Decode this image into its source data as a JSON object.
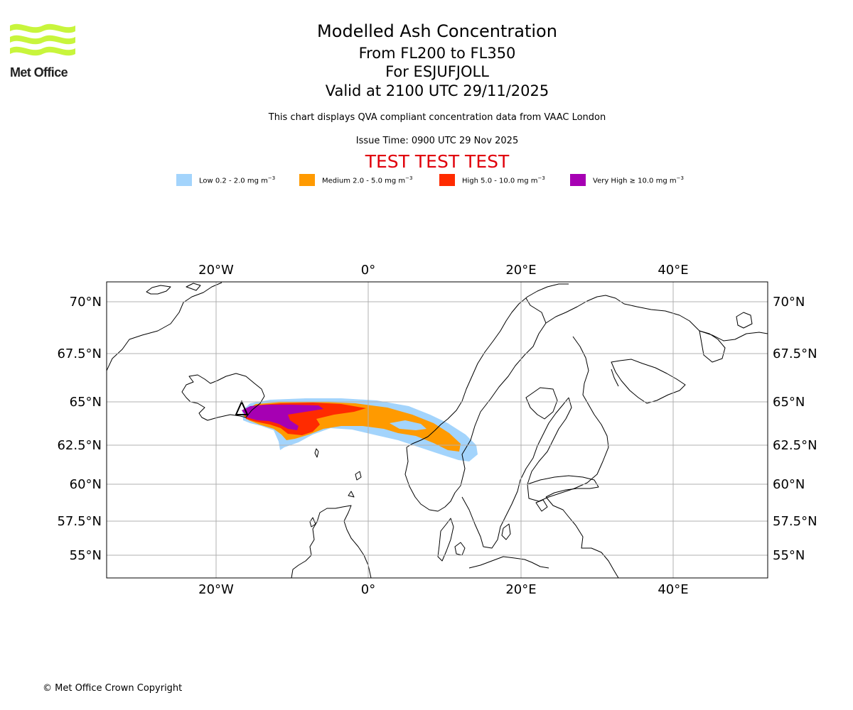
{
  "logo": {
    "text": "Met Office",
    "color": "#c8f53c"
  },
  "header": {
    "title": "Modelled Ash Concentration",
    "levels": "From FL200 to FL350",
    "volcano": "For ESJUFJOLL",
    "valid": "Valid at 2100 UTC 29/11/2025",
    "info": "This chart displays QVA compliant concentration data from VAAC London",
    "issue": "Issue Time: 0900 UTC 29 Nov 2025",
    "test": "TEST TEST TEST"
  },
  "legend": [
    {
      "label": "Low 0.2 - 2.0 mg m",
      "unit_sup": "−3",
      "color": "#a3d4fc"
    },
    {
      "label": "Medium 2.0 - 5.0 mg m",
      "unit_sup": "−3",
      "color": "#ff9a00"
    },
    {
      "label": "High 5.0 - 10.0 mg m",
      "unit_sup": "−3",
      "color": "#ff2b00"
    },
    {
      "label": "Very High  ≥  10.0 mg m",
      "unit_sup": "−3",
      "color": "#a600b3"
    }
  ],
  "map": {
    "lon_labels": [
      "20°W",
      "0°",
      "20°E",
      "40°E"
    ],
    "lat_labels": [
      "70°N",
      "67.5°N",
      "65°N",
      "62.5°N",
      "60°N",
      "57.5°N",
      "55°N"
    ],
    "gridline_color": "#b0b0b0",
    "coast_color": "#000000"
  },
  "footer": {
    "copyright": "© Met Office Crown Copyright"
  }
}
